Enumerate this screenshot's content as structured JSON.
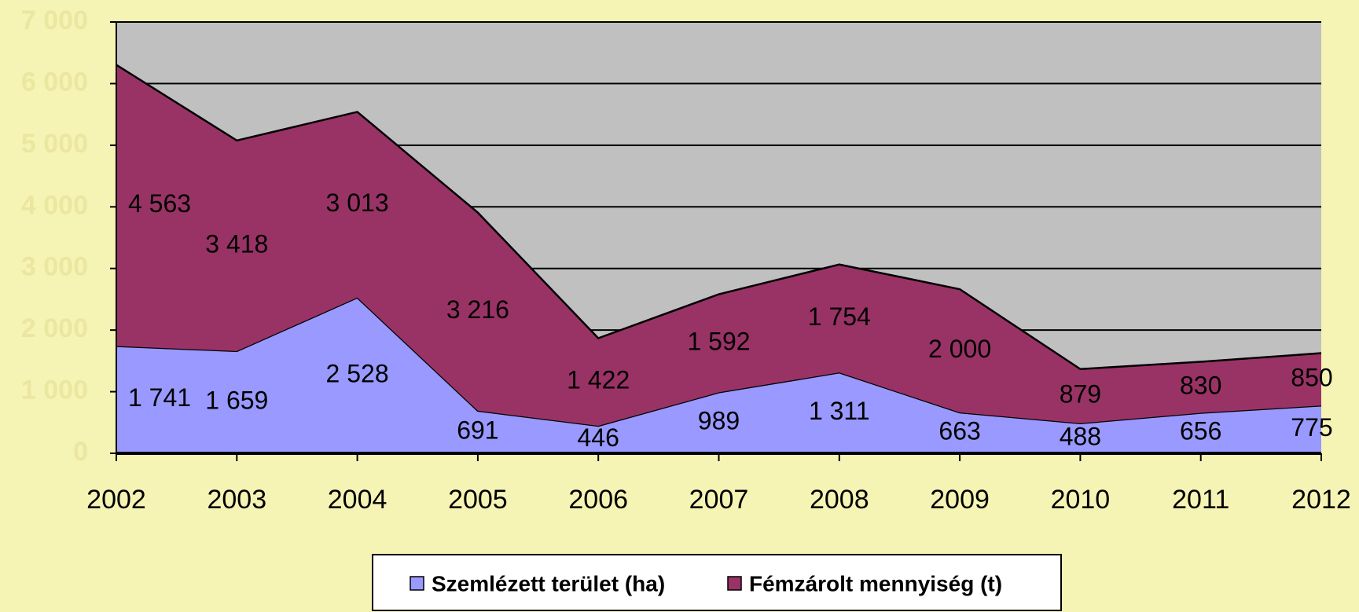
{
  "chart_data": {
    "type": "stacked_area",
    "categories": [
      "2002",
      "2003",
      "2004",
      "2005",
      "2006",
      "2007",
      "2008",
      "2009",
      "2010",
      "2011",
      "2012"
    ],
    "series": [
      {
        "name": "Szemlézett terület (ha)",
        "color": "#9999ff",
        "values": [
          1741,
          1659,
          2528,
          691,
          446,
          989,
          1311,
          663,
          488,
          656,
          775
        ],
        "value_labels": [
          "1 741",
          "1 659",
          "2 528",
          "691",
          "446",
          "989",
          "1 311",
          "663",
          "488",
          "656",
          "775"
        ]
      },
      {
        "name": "Fémzárolt mennyiség (t)",
        "color": "#993366",
        "values": [
          4563,
          3418,
          3013,
          3216,
          1422,
          1592,
          1754,
          2000,
          879,
          830,
          850
        ],
        "value_labels": [
          "4 563",
          "3 418",
          "3 013",
          "3 216",
          "1 422",
          "1 592",
          "1 754",
          "2 000",
          "879",
          "830",
          "850"
        ]
      }
    ],
    "ylim": [
      0,
      7000
    ],
    "yticks": [
      0,
      {
        "value": 1000,
        "label": "1 000"
      },
      {
        "value": 2000,
        "label": "2 000"
      },
      {
        "value": 3000,
        "label": "3 000"
      },
      {
        "value": 4000,
        "label": "4 000"
      },
      {
        "value": 5000,
        "label": "5 000"
      },
      {
        "value": 6000,
        "label": "6 000"
      },
      {
        "value": 7000,
        "label": "7 000"
      }
    ],
    "grid": true,
    "legend": "bottom"
  }
}
